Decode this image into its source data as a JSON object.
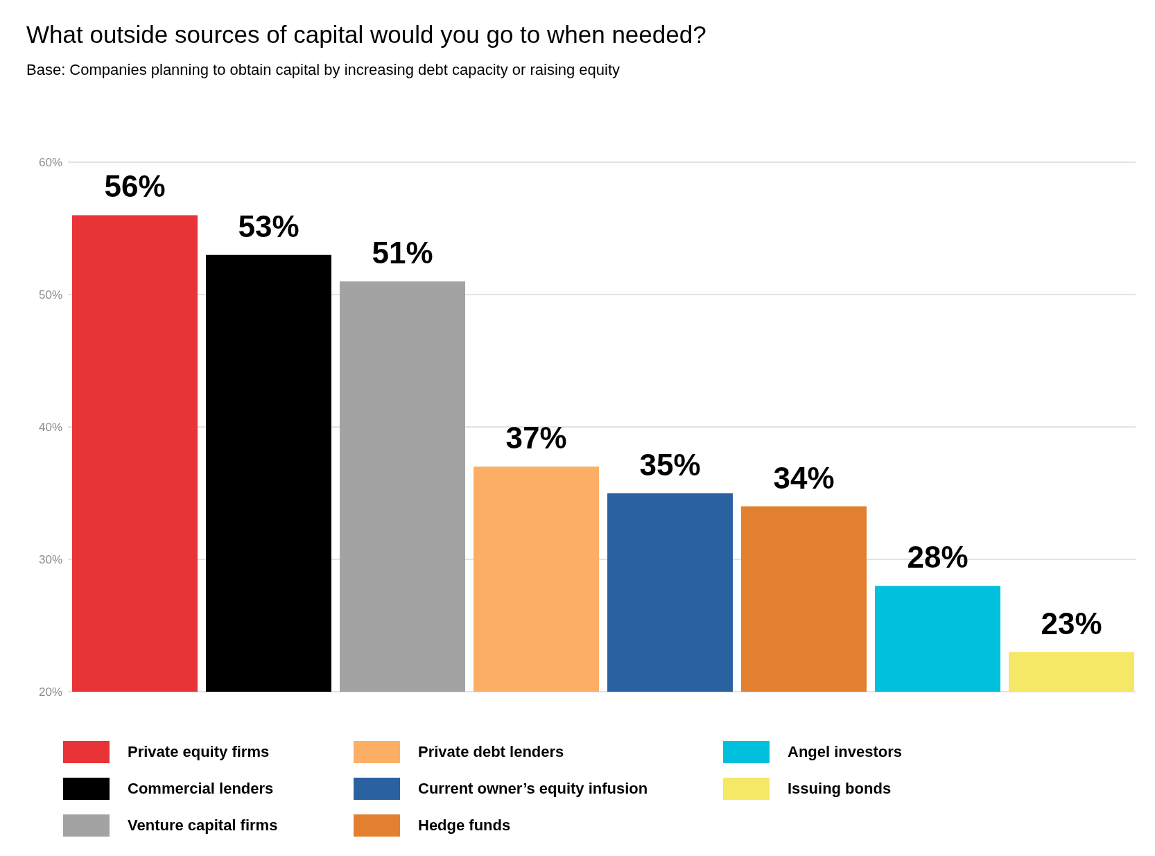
{
  "chart_data": {
    "type": "bar",
    "title": "What outside sources of capital would you go to when needed?",
    "subtitle": "Base: Companies planning to obtain capital by increasing debt capacity or raising equity",
    "categories": [
      null
    ],
    "series": [
      {
        "name": "Private equity firms",
        "color": "#e93437",
        "values": [
          56
        ],
        "value_labels": [
          "56%"
        ]
      },
      {
        "name": "Commercial lenders",
        "color": "#000000",
        "values": [
          53
        ],
        "value_labels": [
          "53%"
        ]
      },
      {
        "name": "Venture capital firms",
        "color": "#a3a3a3",
        "values": [
          51
        ],
        "value_labels": [
          "51%"
        ]
      },
      {
        "name": "Private debt lenders",
        "color": "#fdae65",
        "values": [
          37
        ],
        "value_labels": [
          "37%"
        ]
      },
      {
        "name": "Current owner’s equity infusion",
        "color": "#2a62a1",
        "values": [
          35
        ],
        "value_labels": [
          "35%"
        ]
      },
      {
        "name": "Hedge funds",
        "color": "#e3802f",
        "values": [
          34
        ],
        "value_labels": [
          "34%"
        ]
      },
      {
        "name": "Angel investors",
        "color": "#00c0de",
        "values": [
          28
        ],
        "value_labels": [
          "28%"
        ]
      },
      {
        "name": "Issuing bonds",
        "color": "#f4e866",
        "values": [
          23
        ],
        "value_labels": [
          "23%"
        ]
      }
    ],
    "ylim": [
      20,
      60
    ],
    "yticks": [
      {
        "value": 20,
        "label": "20%"
      },
      {
        "value": 30,
        "label": "30%"
      },
      {
        "value": 40,
        "label": "40%"
      },
      {
        "value": 50,
        "label": "50%"
      },
      {
        "value": 60,
        "label": "60%"
      }
    ],
    "grid": "y",
    "legend": "bottom",
    "tick_labels": "y"
  }
}
